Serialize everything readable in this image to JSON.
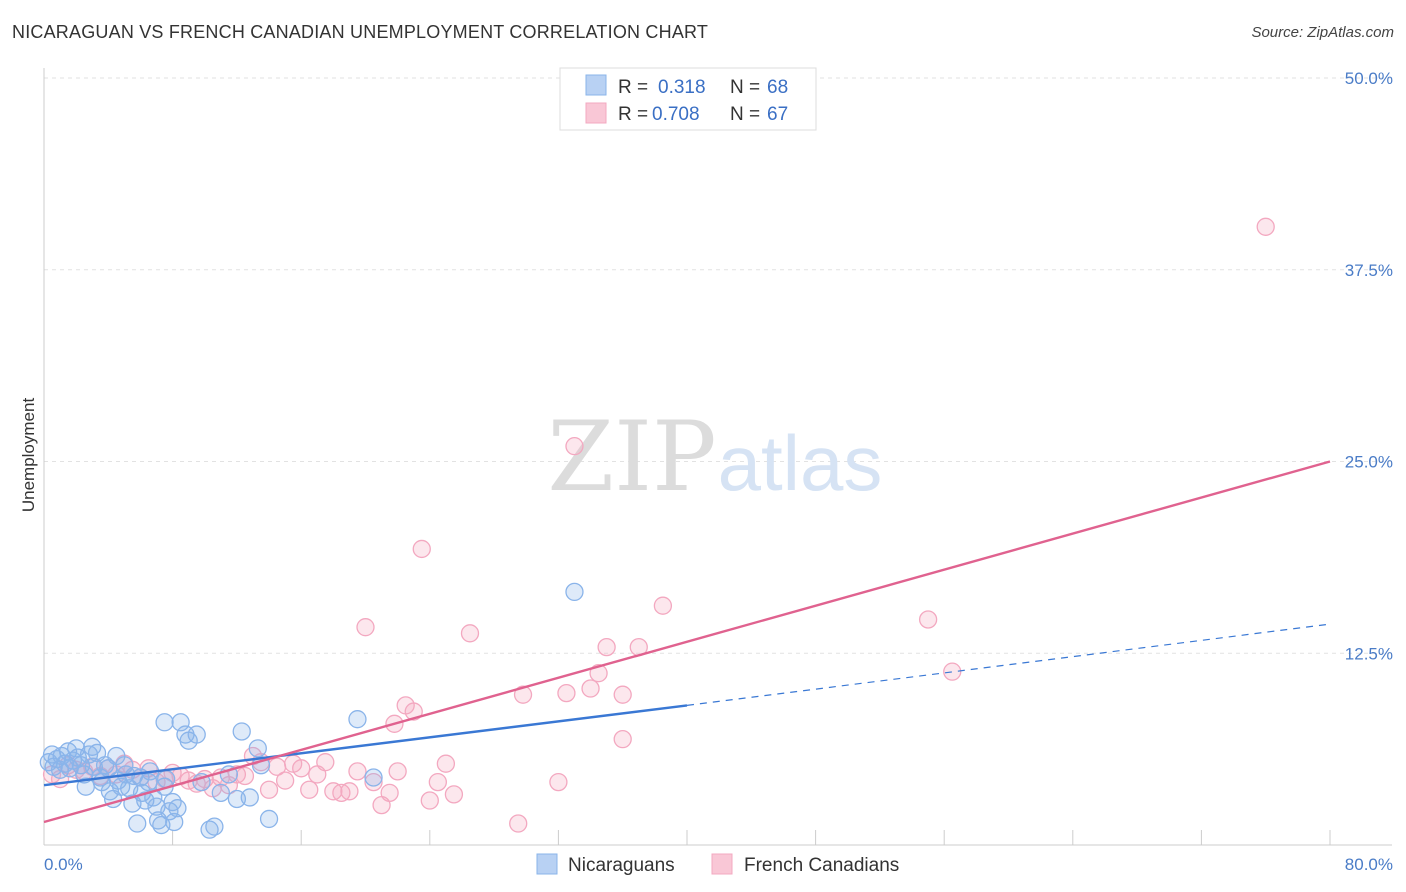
{
  "title": "NICARAGUAN VS FRENCH CANADIAN UNEMPLOYMENT CORRELATION CHART",
  "source": "Source: ZipAtlas.com",
  "watermark": {
    "zip": "ZIP",
    "atlas": "atlas"
  },
  "legend_top": {
    "r_label": "R =",
    "n_label": "N =",
    "rows": [
      {
        "r": "0.318",
        "n": "68"
      },
      {
        "r": "0.708",
        "n": "67"
      }
    ]
  },
  "legend_bottom": [
    "Nicaraguans",
    "French Canadians"
  ],
  "chart_data": {
    "type": "scatter",
    "ylabel": "Unemployment",
    "xlim": [
      0,
      80
    ],
    "ylim": [
      0,
      50
    ],
    "x_tick_labels": [
      {
        "value": 0,
        "label": "0.0%"
      },
      {
        "value": 80,
        "label": "80.0%"
      }
    ],
    "y_tick_labels": [
      {
        "value": 12.5,
        "label": "12.5%"
      },
      {
        "value": 25,
        "label": "25.0%"
      },
      {
        "value": 37.5,
        "label": "37.5%"
      },
      {
        "value": 50,
        "label": "50.0%"
      }
    ],
    "grid": true,
    "legend_position": "top-center",
    "series": [
      {
        "name": "Nicaraguans",
        "color": "#8ab4ea",
        "line_color": "#3a78d4",
        "trend": {
          "solid": [
            [
              0,
              3.9
            ],
            [
              40,
              9.1
            ]
          ],
          "dashed": [
            [
              40,
              9.1
            ],
            [
              80,
              14.4
            ]
          ]
        },
        "points": [
          [
            0.3,
            5.4
          ],
          [
            0.5,
            5.9
          ],
          [
            0.6,
            5.1
          ],
          [
            0.8,
            5.6
          ],
          [
            1.0,
            4.9
          ],
          [
            1.1,
            5.8
          ],
          [
            1.3,
            5.3
          ],
          [
            1.5,
            6.1
          ],
          [
            1.6,
            5.0
          ],
          [
            1.8,
            5.5
          ],
          [
            2.0,
            6.3
          ],
          [
            2.1,
            5.7
          ],
          [
            2.3,
            5.2
          ],
          [
            2.5,
            4.6
          ],
          [
            2.6,
            3.8
          ],
          [
            2.8,
            5.9
          ],
          [
            3.0,
            6.4
          ],
          [
            3.1,
            5.1
          ],
          [
            3.3,
            6.0
          ],
          [
            3.5,
            4.4
          ],
          [
            3.6,
            4.1
          ],
          [
            3.8,
            5.2
          ],
          [
            4.0,
            5.0
          ],
          [
            4.1,
            3.5
          ],
          [
            4.3,
            3.0
          ],
          [
            4.5,
            5.8
          ],
          [
            4.6,
            4.2
          ],
          [
            4.8,
            3.8
          ],
          [
            5.0,
            5.2
          ],
          [
            5.1,
            4.6
          ],
          [
            5.3,
            3.7
          ],
          [
            5.5,
            2.7
          ],
          [
            5.6,
            4.5
          ],
          [
            5.8,
            1.4
          ],
          [
            6.0,
            4.4
          ],
          [
            6.1,
            3.4
          ],
          [
            6.3,
            2.9
          ],
          [
            6.5,
            4.1
          ],
          [
            6.6,
            4.8
          ],
          [
            6.8,
            3.1
          ],
          [
            7.0,
            2.5
          ],
          [
            7.1,
            1.6
          ],
          [
            7.3,
            1.3
          ],
          [
            7.5,
            3.8
          ],
          [
            7.6,
            4.3
          ],
          [
            7.8,
            2.2
          ],
          [
            7.5,
            8.0
          ],
          [
            8.0,
            2.8
          ],
          [
            8.1,
            1.5
          ],
          [
            8.3,
            2.4
          ],
          [
            8.5,
            8.0
          ],
          [
            8.8,
            7.2
          ],
          [
            9.0,
            6.8
          ],
          [
            9.5,
            7.2
          ],
          [
            9.8,
            4.1
          ],
          [
            10.3,
            1.0
          ],
          [
            10.6,
            1.2
          ],
          [
            11.0,
            3.4
          ],
          [
            11.5,
            4.6
          ],
          [
            12.0,
            3.0
          ],
          [
            12.3,
            7.4
          ],
          [
            12.8,
            3.1
          ],
          [
            13.3,
            6.3
          ],
          [
            13.5,
            5.2
          ],
          [
            14.0,
            1.7
          ],
          [
            19.5,
            8.2
          ],
          [
            20.5,
            4.4
          ],
          [
            33.0,
            16.5
          ]
        ]
      },
      {
        "name": "French Canadians",
        "color": "#f3a8c0",
        "line_color": "#e0628f",
        "trend": {
          "solid": [
            [
              0,
              1.5
            ],
            [
              80,
              25.0
            ]
          ]
        },
        "points": [
          [
            0.5,
            4.6
          ],
          [
            1.0,
            4.3
          ],
          [
            1.5,
            5.2
          ],
          [
            2.0,
            4.9
          ],
          [
            2.5,
            4.8
          ],
          [
            3.0,
            5.1
          ],
          [
            3.5,
            4.5
          ],
          [
            4.0,
            5.0
          ],
          [
            4.5,
            4.6
          ],
          [
            5.0,
            5.3
          ],
          [
            5.5,
            4.9
          ],
          [
            6.0,
            4.4
          ],
          [
            6.5,
            5.0
          ],
          [
            7.0,
            4.1
          ],
          [
            7.5,
            4.3
          ],
          [
            8.0,
            4.7
          ],
          [
            8.5,
            4.5
          ],
          [
            9.0,
            4.2
          ],
          [
            9.5,
            4.0
          ],
          [
            10.0,
            4.3
          ],
          [
            10.5,
            3.7
          ],
          [
            11.0,
            4.4
          ],
          [
            11.5,
            3.9
          ],
          [
            12.0,
            4.6
          ],
          [
            12.5,
            4.5
          ],
          [
            13.0,
            5.8
          ],
          [
            13.5,
            5.4
          ],
          [
            14.0,
            3.6
          ],
          [
            14.5,
            5.1
          ],
          [
            15.0,
            4.2
          ],
          [
            15.5,
            5.3
          ],
          [
            16.0,
            5.0
          ],
          [
            16.5,
            3.6
          ],
          [
            17.0,
            4.6
          ],
          [
            17.5,
            5.4
          ],
          [
            18.0,
            3.5
          ],
          [
            18.5,
            3.4
          ],
          [
            19.0,
            3.5
          ],
          [
            19.5,
            4.8
          ],
          [
            20.0,
            14.2
          ],
          [
            20.5,
            4.1
          ],
          [
            21.0,
            2.6
          ],
          [
            21.5,
            3.4
          ],
          [
            21.8,
            7.9
          ],
          [
            22.0,
            4.8
          ],
          [
            22.5,
            9.1
          ],
          [
            23.0,
            8.7
          ],
          [
            23.5,
            19.3
          ],
          [
            24.0,
            2.9
          ],
          [
            24.5,
            4.1
          ],
          [
            25.0,
            5.3
          ],
          [
            25.5,
            3.3
          ],
          [
            26.5,
            13.8
          ],
          [
            29.5,
            1.4
          ],
          [
            29.8,
            9.8
          ],
          [
            32.0,
            4.1
          ],
          [
            32.5,
            9.9
          ],
          [
            33.0,
            26.0
          ],
          [
            34.0,
            10.2
          ],
          [
            34.5,
            11.2
          ],
          [
            35.0,
            12.9
          ],
          [
            36.0,
            6.9
          ],
          [
            36.0,
            9.8
          ],
          [
            37.0,
            12.9
          ],
          [
            38.5,
            15.6
          ],
          [
            55.0,
            14.7
          ],
          [
            56.5,
            11.3
          ],
          [
            76.0,
            40.3
          ]
        ]
      }
    ]
  }
}
